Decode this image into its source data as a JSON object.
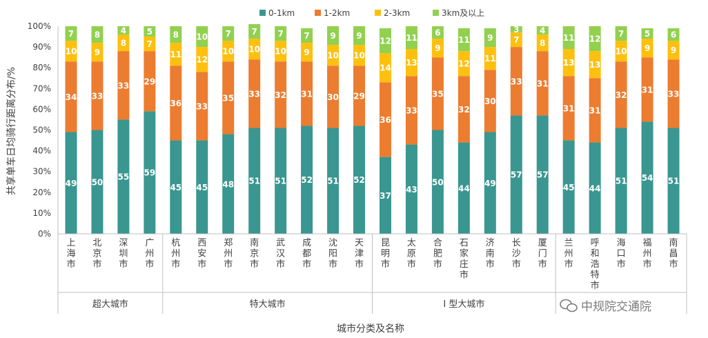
{
  "chart_data": {
    "type": "bar",
    "stacked": true,
    "ylabel": "共享单车日均骑行距离分布/%",
    "xlabel": "城市分类及名称",
    "ylim": [
      0,
      100
    ],
    "y_tick_labels": [
      "0%",
      "10%",
      "20%",
      "30%",
      "40%",
      "50%",
      "60%",
      "70%",
      "80%",
      "90%",
      "100%"
    ],
    "legend_position": "top",
    "categories": [
      "上海市",
      "北京市",
      "深圳市",
      "广州市",
      "杭州市",
      "西安市",
      "郑州市",
      "南京市",
      "武汉市",
      "成都市",
      "沈阳市",
      "天津市",
      "昆明市",
      "太原市",
      "合肥市",
      "石家庄市",
      "济南市",
      "长沙市",
      "厦门市",
      "兰州市",
      "呼和浩特市",
      "海口市",
      "福州市",
      "南昌市"
    ],
    "groups": [
      {
        "name": "超大城市",
        "count": 4
      },
      {
        "name": "特大城市",
        "count": 8
      },
      {
        "name": "I 型大城市",
        "count": 7
      },
      {
        "name": "",
        "count": 5
      }
    ],
    "series": [
      {
        "name": "0-1km",
        "color": "#3a9690",
        "values": [
          49,
          50,
          55,
          59,
          45,
          45,
          48,
          51,
          51,
          52,
          51,
          52,
          37,
          43,
          50,
          44,
          49,
          57,
          57,
          45,
          44,
          51,
          54,
          51
        ]
      },
      {
        "name": "1-2km",
        "color": "#ec7c30",
        "values": [
          34,
          33,
          33,
          29,
          36,
          33,
          35,
          33,
          32,
          31,
          30,
          29,
          36,
          33,
          35,
          32,
          30,
          33,
          31,
          31,
          31,
          32,
          31,
          33
        ]
      },
      {
        "name": "2-3km",
        "color": "#fec00f",
        "values": [
          10,
          9,
          8,
          7,
          11,
          12,
          10,
          10,
          10,
          9,
          10,
          10,
          14,
          13,
          9,
          12,
          11,
          7,
          8,
          13,
          13,
          10,
          9,
          9
        ]
      },
      {
        "name": "3km及以上",
        "color": "#92d050",
        "values": [
          7,
          8,
          4,
          5,
          8,
          10,
          7,
          7,
          7,
          7,
          9,
          9,
          12,
          11,
          6,
          11,
          9,
          3,
          4,
          11,
          12,
          7,
          5,
          6
        ]
      }
    ]
  },
  "watermark": {
    "text": "中规院交通院"
  }
}
